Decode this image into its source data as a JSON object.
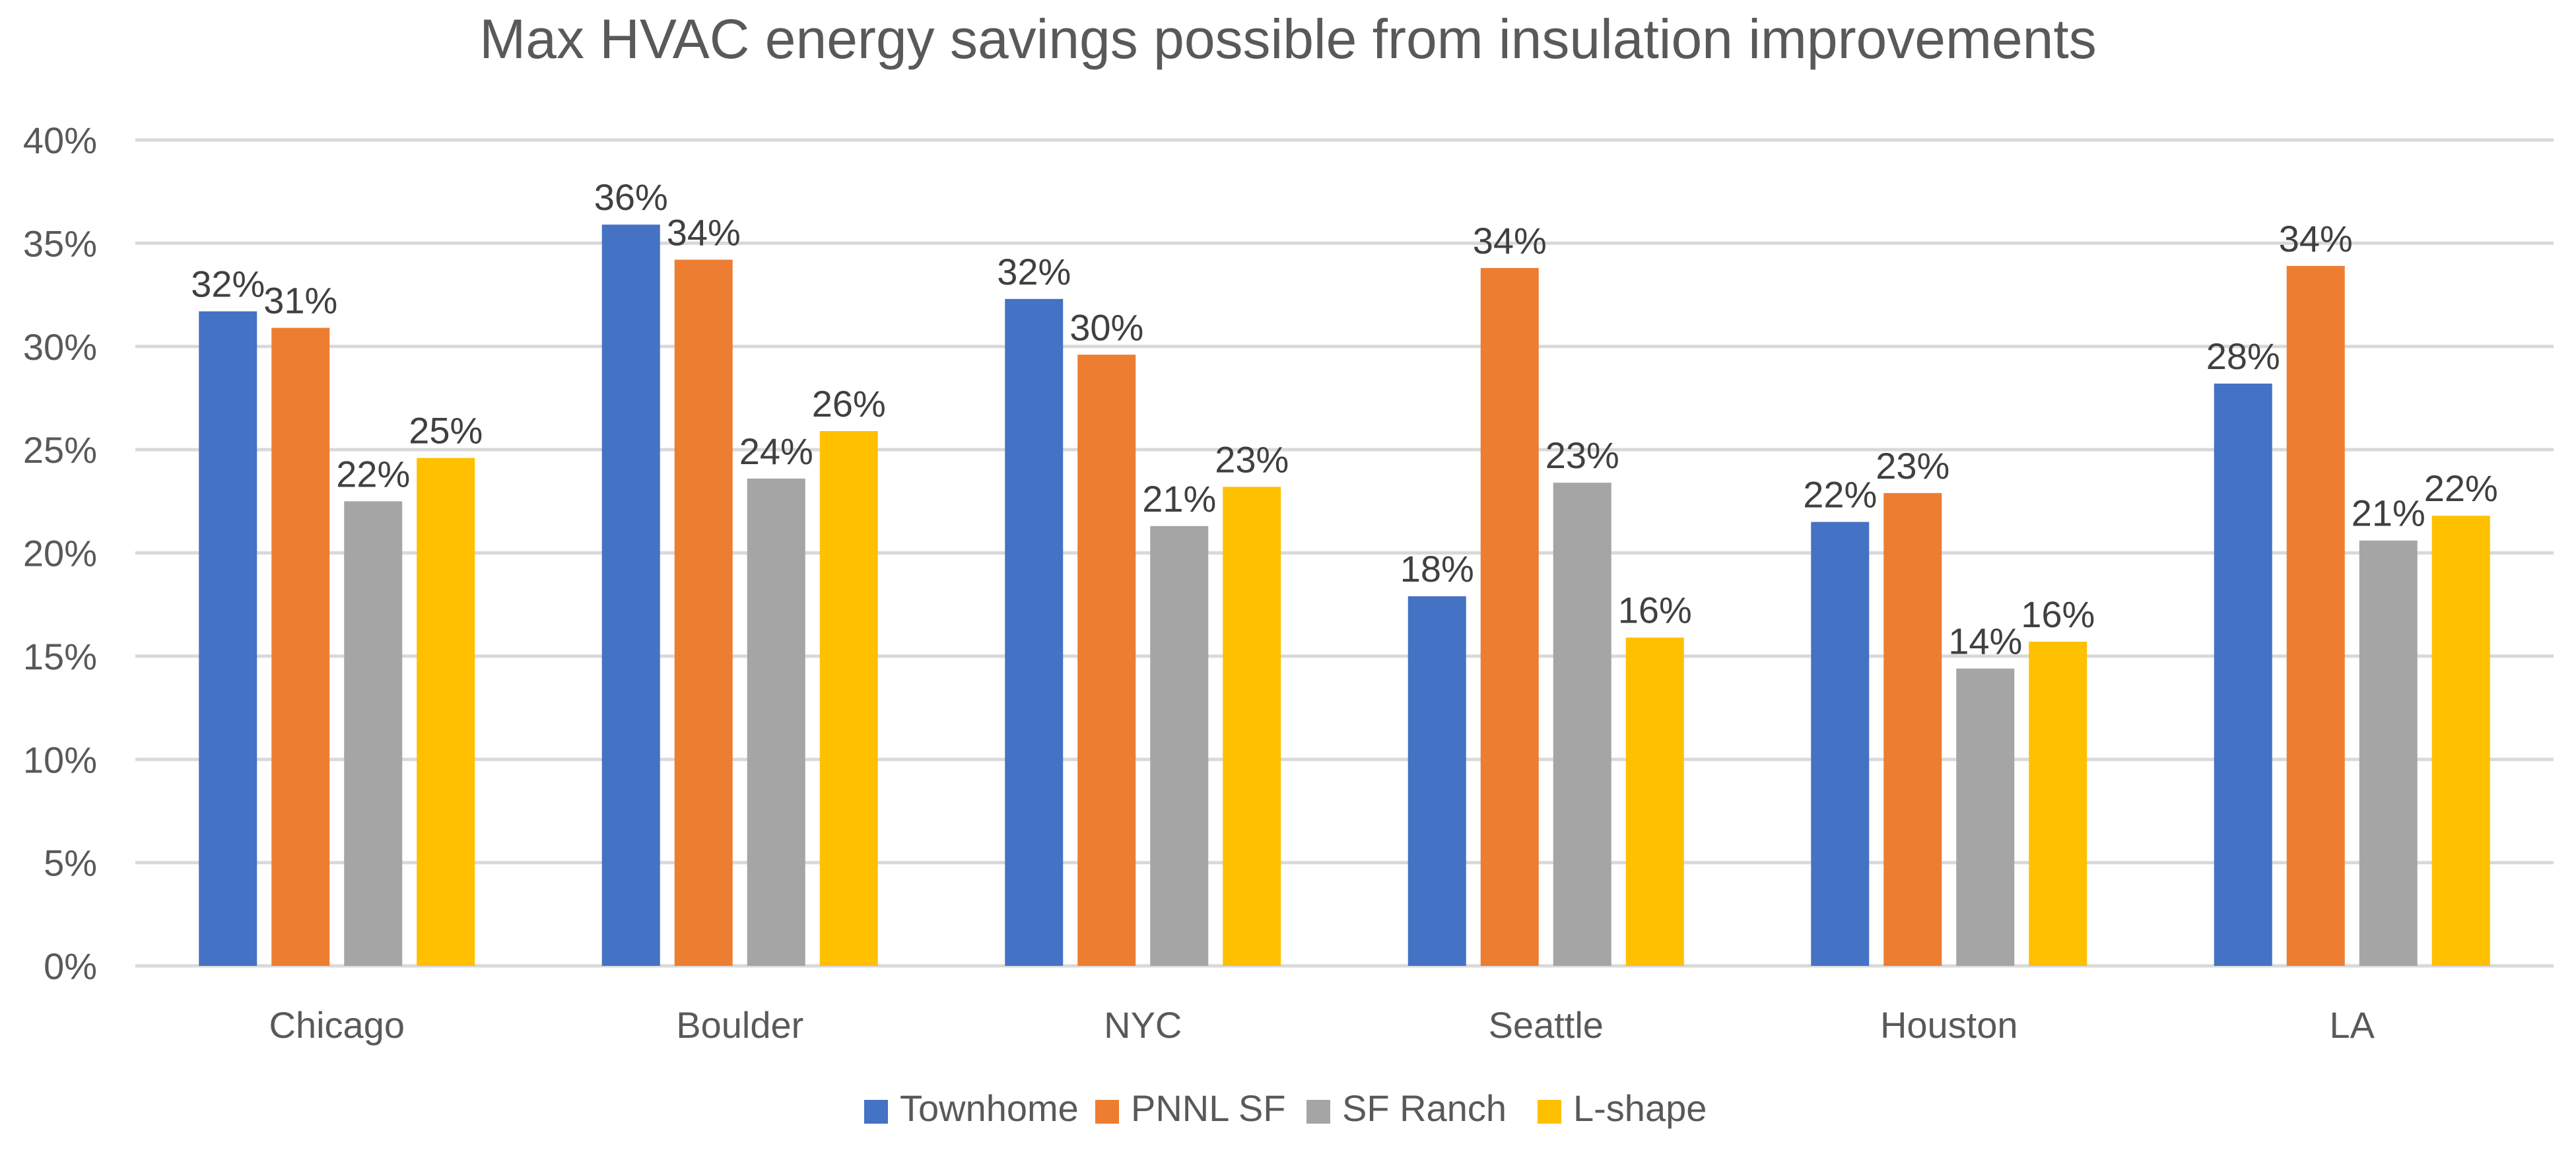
{
  "chart_data": {
    "type": "bar",
    "title": "Max HVAC energy savings possible from insulation improvements",
    "xlabel": "",
    "ylabel": "",
    "ylim": [
      0,
      40
    ],
    "yticks": [
      "0%",
      "5%",
      "10%",
      "15%",
      "20%",
      "25%",
      "30%",
      "35%",
      "40%"
    ],
    "ytick_values": [
      0,
      5,
      10,
      15,
      20,
      25,
      30,
      35,
      40
    ],
    "grid": true,
    "legend_position": "bottom",
    "categories": [
      "Chicago",
      "Boulder",
      "NYC",
      "Seattle",
      "Houston",
      "LA"
    ],
    "series": [
      {
        "name": "Townhome",
        "color": "#4472C4",
        "values": [
          31.7,
          35.9,
          32.3,
          17.9,
          21.5,
          28.2
        ],
        "labels": [
          "32%",
          "36%",
          "32%",
          "18%",
          "22%",
          "28%"
        ]
      },
      {
        "name": "PNNL SF",
        "color": "#ED7D31",
        "values": [
          30.9,
          34.2,
          29.6,
          33.8,
          22.9,
          33.9
        ],
        "labels": [
          "31%",
          "34%",
          "30%",
          "34%",
          "23%",
          "34%"
        ]
      },
      {
        "name": "SF Ranch",
        "color": "#A5A5A5",
        "values": [
          22.5,
          23.6,
          21.3,
          23.4,
          14.4,
          20.6
        ],
        "labels": [
          "22%",
          "24%",
          "21%",
          "23%",
          "14%",
          "21%"
        ]
      },
      {
        "name": "L-shape",
        "color": "#FFC000",
        "values": [
          24.6,
          25.9,
          23.2,
          15.9,
          15.7,
          21.8
        ],
        "labels": [
          "25%",
          "26%",
          "23%",
          "16%",
          "16%",
          "22%"
        ]
      }
    ]
  }
}
